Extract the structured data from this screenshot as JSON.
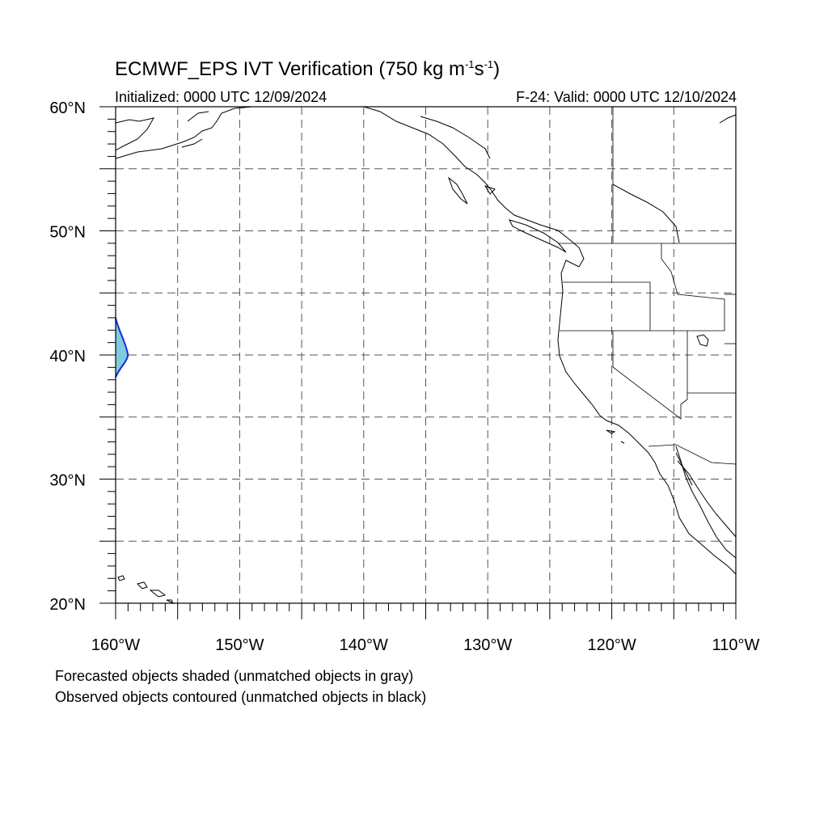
{
  "title": {
    "main": "ECMWF_EPS IVT Verification (750 kg m",
    "exp1": "-1",
    "mid": "s",
    "exp2": "-1",
    "close": ")"
  },
  "initialized": "Initialized: 0000 UTC 12/09/2024",
  "valid": "F-24: Valid: 0000 UTC 12/10/2024",
  "map": {
    "lat_range": [
      20,
      60
    ],
    "lon_range": [
      -160,
      -110
    ],
    "lat_labels": [
      {
        "lat": 60,
        "text": "60°N"
      },
      {
        "lat": 50,
        "text": "50°N"
      },
      {
        "lat": 40,
        "text": "40°N"
      },
      {
        "lat": 30,
        "text": "30°N"
      },
      {
        "lat": 20,
        "text": "20°N"
      }
    ],
    "lon_labels": [
      {
        "lon": -160,
        "text": "160°W"
      },
      {
        "lon": -150,
        "text": "150°W"
      },
      {
        "lon": -140,
        "text": "140°W"
      },
      {
        "lon": -130,
        "text": "130°W"
      },
      {
        "lon": -120,
        "text": "120°W"
      },
      {
        "lon": -110,
        "text": "110°W"
      }
    ],
    "gridline_interval_deg": 5,
    "forecast_fill_color": "#7ecbe0",
    "observed_contour_color": "#1a2ad6",
    "object": {
      "description_lat_span": [
        38.2,
        43
      ],
      "peak_lat": 40,
      "east_edge_lon": -159
    }
  },
  "legend": {
    "line1": "Forecasted objects shaded (unmatched objects in gray)",
    "line2": "Observed objects contoured (unmatched objects in black)"
  }
}
